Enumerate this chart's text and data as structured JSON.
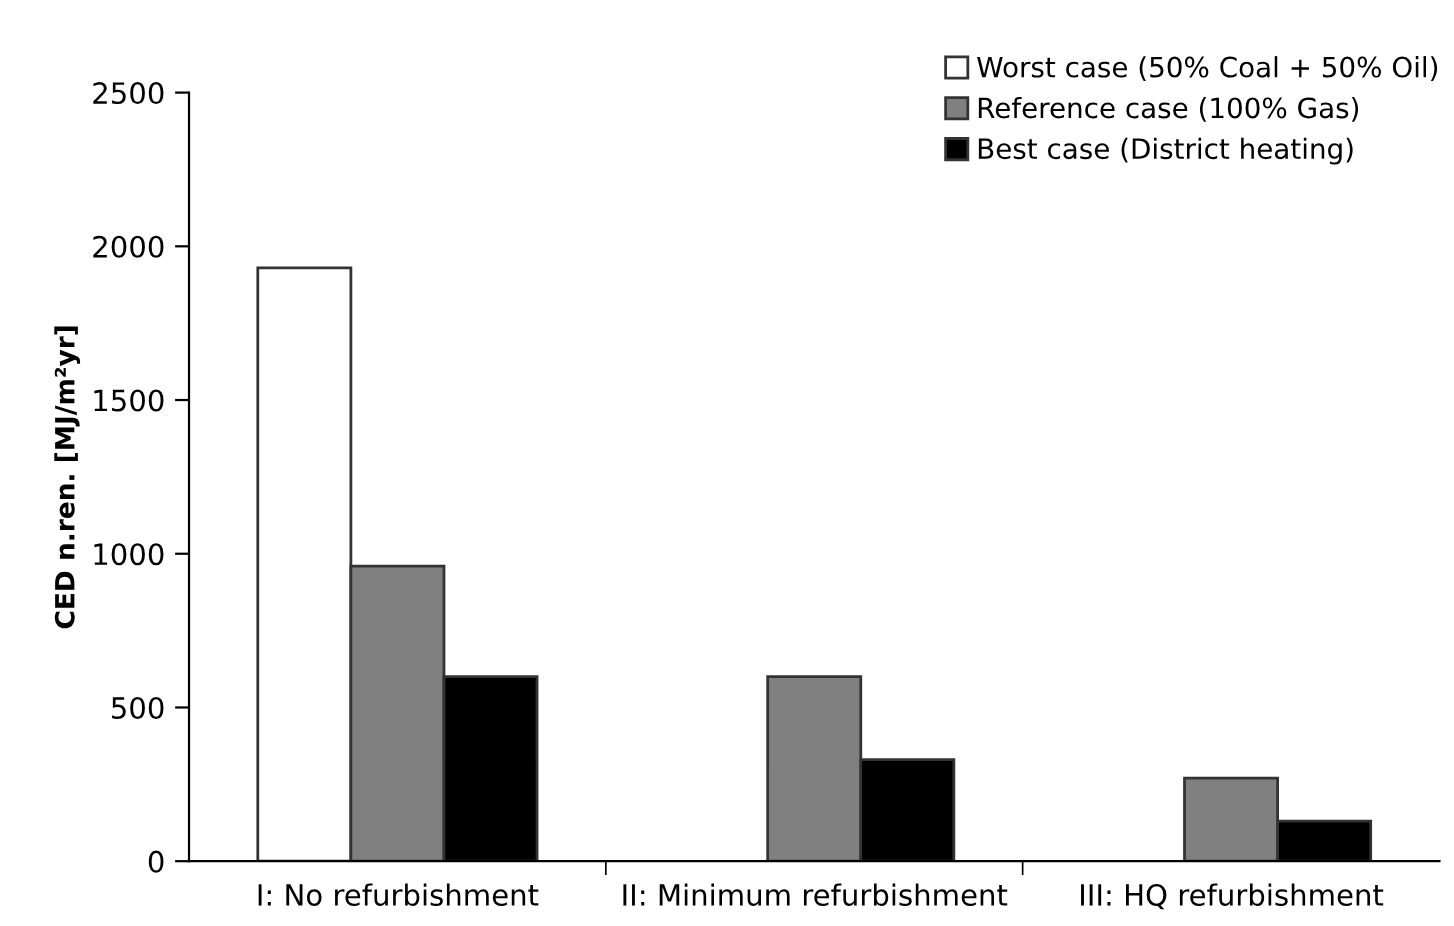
{
  "chart_data": {
    "type": "bar",
    "ylabel": "CED n.ren. [MJ/m²yr]",
    "categories": [
      "I: No refurbishment",
      "II: Minimum refurbishment",
      "III: HQ refurbishment"
    ],
    "series": [
      {
        "name": "Worst case (50% Coal + 50% Oil)",
        "color": "#ffffff",
        "values": [
          1930,
          null,
          null
        ]
      },
      {
        "name": "Reference case (100% Gas)",
        "color": "#808080",
        "values": [
          960,
          600,
          270
        ]
      },
      {
        "name": "Best case (District heating)",
        "color": "#000000",
        "values": [
          600,
          330,
          130
        ]
      }
    ],
    "ylim": [
      0,
      2500
    ],
    "yticks": [
      0,
      500,
      1000,
      1500,
      2000,
      2500
    ],
    "grid": false,
    "legend": "top right"
  }
}
